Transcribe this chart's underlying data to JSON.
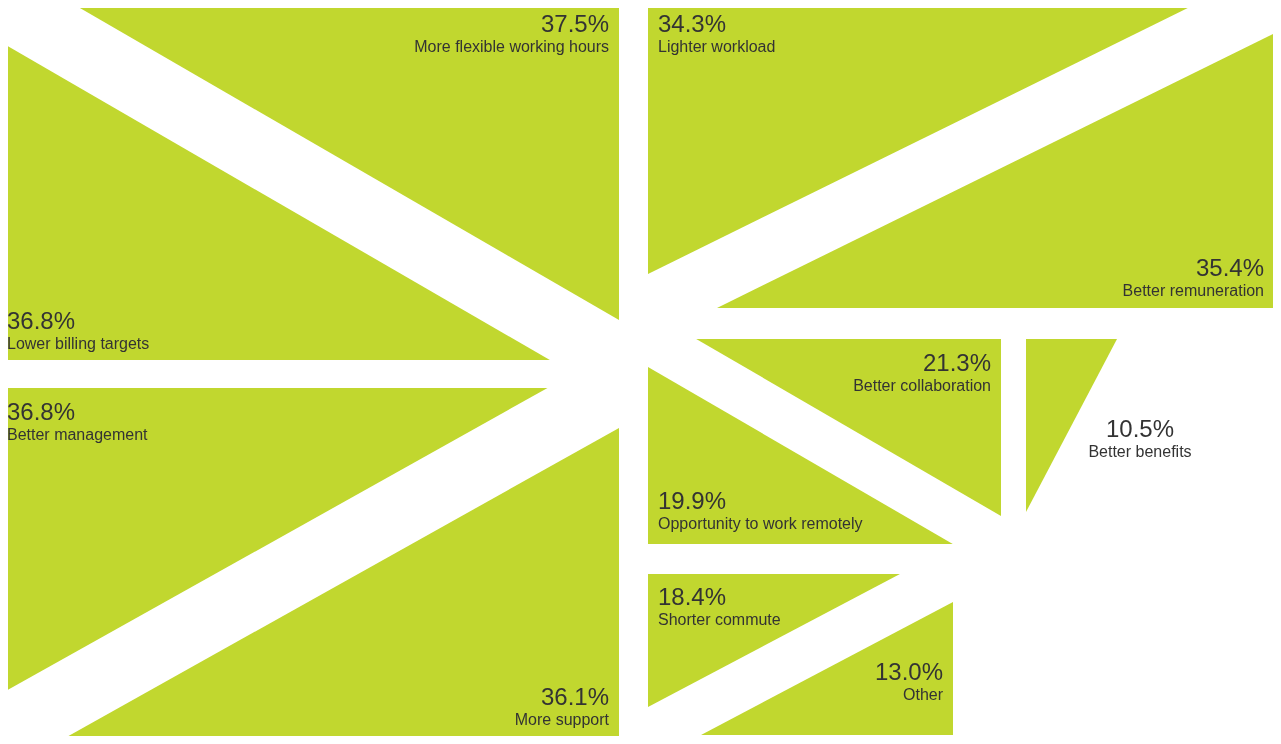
{
  "chart_data": {
    "type": "other",
    "categories": [
      "More flexible working hours",
      "Lower billing targets",
      "Better management",
      "More support",
      "Lighter workload",
      "Better remuneration",
      "Better collaboration",
      "Opportunity to work remotely",
      "Better benefits",
      "Shorter commute",
      "Other"
    ],
    "values": [
      37.5,
      36.8,
      36.8,
      36.1,
      34.3,
      35.4,
      21.3,
      19.9,
      10.5,
      18.4,
      13.0
    ],
    "value_labels": [
      "37.5%",
      "36.8%",
      "36.8%",
      "36.1%",
      "34.3%",
      "35.4%",
      "21.3%",
      "19.9%",
      "10.5%",
      "18.4%",
      "13.0%"
    ],
    "color": "#c1d72f"
  }
}
